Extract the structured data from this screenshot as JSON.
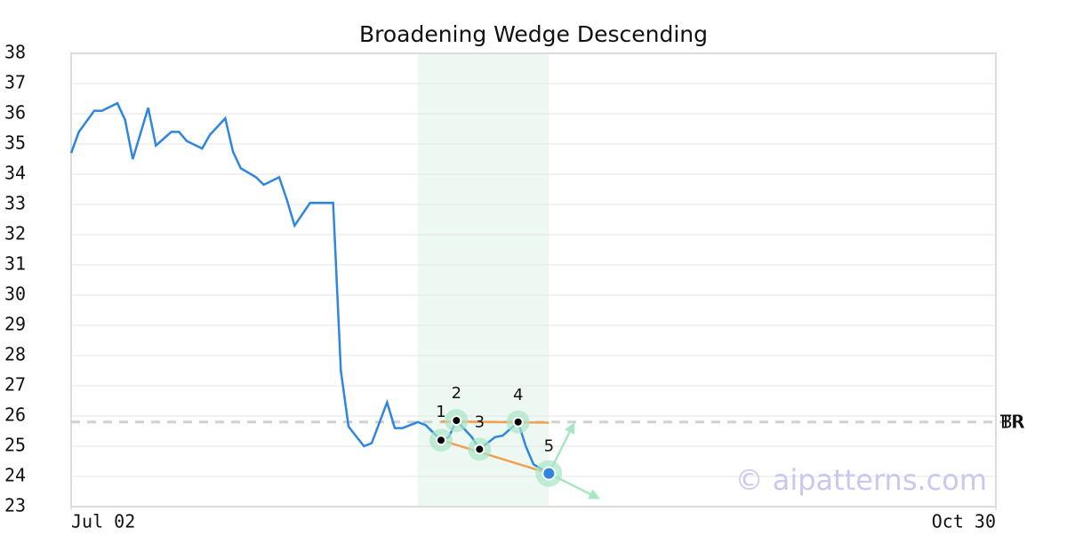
{
  "chart_data": {
    "type": "line",
    "title": "Broadening Wedge Descending",
    "color": "#2e86de",
    "x": [
      0,
      1,
      3,
      4,
      6,
      7,
      8,
      10,
      11,
      13,
      14,
      15,
      17,
      18,
      20,
      21,
      22,
      24,
      25,
      27,
      28,
      29,
      31,
      32,
      34,
      35,
      36,
      38,
      39,
      41,
      42,
      43,
      45,
      46,
      48,
      49,
      50,
      52,
      53,
      55,
      56,
      58,
      59,
      60,
      62
    ],
    "values": [
      34.7,
      35.4,
      36.1,
      36.1,
      36.35,
      35.8,
      34.5,
      36.2,
      34.95,
      35.4,
      35.4,
      35.1,
      34.85,
      35.3,
      35.85,
      34.75,
      34.2,
      33.9,
      33.65,
      33.9,
      33.15,
      32.3,
      33.05,
      33.05,
      33.05,
      27.5,
      25.65,
      25.0,
      25.1,
      26.45,
      25.6,
      25.6,
      25.8,
      25.7,
      25.2,
      25.3,
      25.85,
      25.3,
      24.9,
      25.3,
      25.35,
      25.8,
      25.0,
      24.4,
      24.1
    ],
    "xlim": [
      0,
      120
    ],
    "xticks": [
      {
        "value": 0,
        "label": "Jul 02"
      },
      {
        "value": 120,
        "label": "Oct 30"
      }
    ],
    "ylim": [
      23,
      38
    ],
    "yticks": [
      23,
      24,
      25,
      26,
      27,
      28,
      29,
      30,
      31,
      32,
      33,
      34,
      35,
      36,
      37,
      38
    ],
    "grid": true,
    "highlight": {
      "x": [
        45,
        62
      ],
      "color": "#e8f6f0"
    },
    "pattern": {
      "points": [
        {
          "label": "1",
          "x": 48,
          "y": 25.2
        },
        {
          "label": "2",
          "x": 50,
          "y": 25.85
        },
        {
          "label": "3",
          "x": 53,
          "y": 24.9
        },
        {
          "label": "4",
          "x": 58,
          "y": 25.8
        },
        {
          "label": "5",
          "x": 62,
          "y": 24.1
        }
      ],
      "upper": {
        "x": [
          48,
          62
        ],
        "y": [
          25.82,
          25.78
        ],
        "color": "#f0a050"
      },
      "lower": {
        "x": [
          48,
          62
        ],
        "y": [
          25.2,
          24.1
        ],
        "color": "#f0a050"
      }
    },
    "level": {
      "value": 25.8,
      "labels": [
        "TR",
        "BR"
      ],
      "color": "#d0d0d0"
    },
    "watermark": "© aipatterns.com"
  }
}
